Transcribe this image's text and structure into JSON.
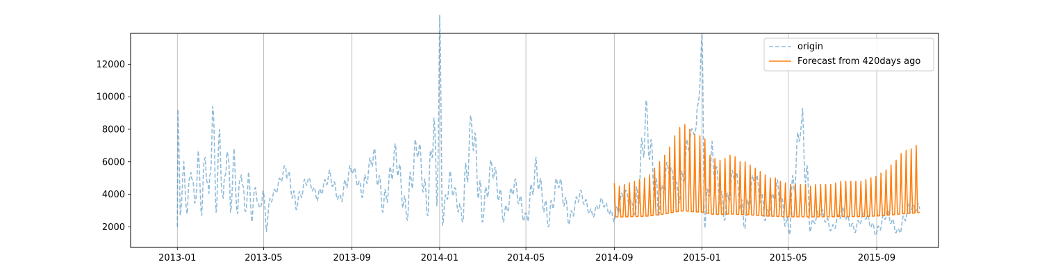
{
  "chart_data": {
    "type": "line",
    "x_type": "date",
    "xlim": [
      "2012-10-28",
      "2015-11-26"
    ],
    "ylim": [
      730,
      13900
    ],
    "x_ticks": [
      {
        "date": "2013-01-01",
        "label": "2013-01"
      },
      {
        "date": "2013-05-01",
        "label": "2013-05"
      },
      {
        "date": "2013-09-01",
        "label": "2013-09"
      },
      {
        "date": "2014-01-01",
        "label": "2014-01"
      },
      {
        "date": "2014-05-01",
        "label": "2014-05"
      },
      {
        "date": "2014-09-01",
        "label": "2014-09"
      },
      {
        "date": "2015-01-01",
        "label": "2015-01"
      },
      {
        "date": "2015-05-01",
        "label": "2015-05"
      },
      {
        "date": "2015-09-01",
        "label": "2015-09"
      }
    ],
    "y_ticks": [
      {
        "value": 2000,
        "label": "2000"
      },
      {
        "value": 4000,
        "label": "4000"
      },
      {
        "value": 6000,
        "label": "6000"
      },
      {
        "value": 8000,
        "label": "8000"
      },
      {
        "value": 10000,
        "label": "10000"
      },
      {
        "value": 12000,
        "label": "12000"
      }
    ],
    "grid": "x-axis only (vertical lines)",
    "legend_position": "top-right",
    "series": [
      {
        "name": "origin",
        "color": "#1f77b4",
        "style": "dashed",
        "opacity": 0.5,
        "x": [
          "2013-01-01",
          "2013-01-02",
          "2013-01-05",
          "2013-01-10",
          "2013-01-15",
          "2013-01-20",
          "2013-01-25",
          "2013-01-30",
          "2013-02-04",
          "2013-02-09",
          "2013-02-14",
          "2013-02-19",
          "2013-02-24",
          "2013-03-01",
          "2013-03-06",
          "2013-03-11",
          "2013-03-16",
          "2013-03-21",
          "2013-03-26",
          "2013-03-31",
          "2013-04-05",
          "2013-04-10",
          "2013-04-15",
          "2013-04-20",
          "2013-04-25",
          "2013-04-30",
          "2013-05-05",
          "2013-05-10",
          "2013-05-20",
          "2013-06-01",
          "2013-06-15",
          "2013-07-01",
          "2013-07-15",
          "2013-08-01",
          "2013-08-15",
          "2013-09-01",
          "2013-09-15",
          "2013-10-01",
          "2013-10-15",
          "2013-11-01",
          "2013-11-15",
          "2013-12-01",
          "2013-12-15",
          "2013-12-24",
          "2013-12-28",
          "2014-01-01",
          "2014-01-05",
          "2014-01-15",
          "2014-02-01",
          "2014-02-15",
          "2014-03-01",
          "2014-03-15",
          "2014-04-01",
          "2014-04-15",
          "2014-05-01",
          "2014-05-15",
          "2014-06-01",
          "2014-06-15",
          "2014-07-01",
          "2014-07-15",
          "2014-08-01",
          "2014-08-15",
          "2014-09-01",
          "2014-09-15",
          "2014-10-01",
          "2014-10-15",
          "2014-11-01",
          "2014-11-15",
          "2014-12-01",
          "2014-12-15",
          "2014-12-24",
          "2014-12-28",
          "2015-01-01",
          "2015-01-05",
          "2015-01-15",
          "2015-02-01",
          "2015-02-15",
          "2015-03-01",
          "2015-03-15",
          "2015-04-01",
          "2015-04-15",
          "2015-05-01",
          "2015-05-15",
          "2015-05-20",
          "2015-06-01",
          "2015-06-15",
          "2015-07-01",
          "2015-07-15",
          "2015-08-01",
          "2015-08-15",
          "2015-09-01",
          "2015-09-15",
          "2015-10-01",
          "2015-10-15",
          "2015-10-31"
        ],
        "y": [
          2000,
          8200,
          3000,
          5500,
          2800,
          6000,
          3200,
          6200,
          3000,
          6600,
          3400,
          9400,
          3200,
          7600,
          3000,
          7300,
          3200,
          6200,
          2800,
          5800,
          2700,
          5000,
          2600,
          4600,
          2800,
          4200,
          2000,
          3600,
          4400,
          5700,
          3300,
          5000,
          3800,
          5200,
          3600,
          5700,
          4100,
          6500,
          3200,
          6600,
          2700,
          7300,
          3000,
          8700,
          3600,
          13400,
          2400,
          5000,
          2600,
          8500,
          2600,
          5900,
          2600,
          4700,
          2300,
          5600,
          2300,
          5000,
          2400,
          4100,
          2700,
          3600,
          2500,
          4200,
          2800,
          8800,
          3000,
          5800,
          3800,
          7700,
          8000,
          10500,
          13300,
          2200,
          6400,
          2700,
          5500,
          2200,
          5200,
          2500,
          4500,
          1800,
          7100,
          8500,
          2000,
          3000,
          1800,
          3000,
          1800,
          2800,
          1600,
          2900,
          1600,
          3100,
          3200
        ]
      },
      {
        "name": "Forecast from 420days ago",
        "color": "#ff7f0e",
        "style": "solid",
        "opacity": 1,
        "x": [
          "2014-09-01",
          "2014-09-08",
          "2014-09-15",
          "2014-09-22",
          "2014-09-29",
          "2014-10-06",
          "2014-10-13",
          "2014-10-20",
          "2014-10-27",
          "2014-11-03",
          "2014-11-10",
          "2014-11-17",
          "2014-11-24",
          "2014-12-01",
          "2014-12-08",
          "2014-12-15",
          "2014-12-22",
          "2014-12-29",
          "2015-01-05",
          "2015-01-12",
          "2015-01-19",
          "2015-01-26",
          "2015-02-02",
          "2015-02-09",
          "2015-02-16",
          "2015-02-23",
          "2015-03-02",
          "2015-03-09",
          "2015-03-16",
          "2015-03-23",
          "2015-03-30",
          "2015-04-06",
          "2015-04-13",
          "2015-04-20",
          "2015-04-27",
          "2015-05-04",
          "2015-05-11",
          "2015-05-18",
          "2015-05-25",
          "2015-06-01",
          "2015-06-08",
          "2015-06-15",
          "2015-06-22",
          "2015-06-29",
          "2015-07-06",
          "2015-07-13",
          "2015-07-20",
          "2015-07-27",
          "2015-08-03",
          "2015-08-10",
          "2015-08-17",
          "2015-08-24",
          "2015-08-31",
          "2015-09-07",
          "2015-09-14",
          "2015-09-21",
          "2015-09-28",
          "2015-10-05",
          "2015-10-12",
          "2015-10-19",
          "2015-10-26",
          "2015-10-31"
        ],
        "y": [
          4700,
          4500,
          4600,
          4700,
          4800,
          4900,
          5000,
          5200,
          5600,
          6000,
          6400,
          6900,
          7600,
          8100,
          8300,
          8000,
          7700,
          7600,
          7400,
          6400,
          6200,
          6100,
          6200,
          6400,
          6300,
          6000,
          6000,
          5800,
          5600,
          5400,
          5200,
          5000,
          5000,
          4800,
          4700,
          4600,
          4600,
          4600,
          4600,
          4500,
          4600,
          4600,
          4600,
          4600,
          4700,
          4800,
          4800,
          4800,
          4800,
          4800,
          4900,
          5000,
          5100,
          5300,
          5500,
          5800,
          6100,
          6500,
          6700,
          6800,
          7000,
          7500
        ]
      }
    ]
  }
}
